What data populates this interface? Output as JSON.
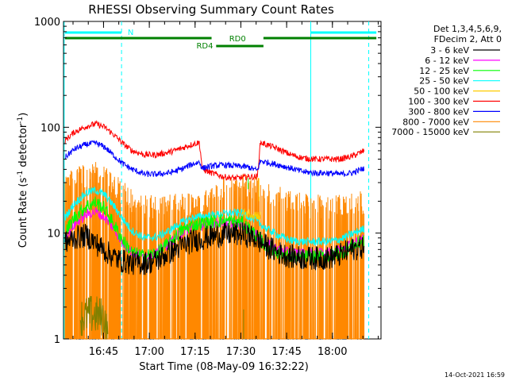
{
  "chart_data": {
    "type": "line",
    "title": "RHESSI Observing Summary Count Rates",
    "xlabel": "Start Time (08-May-09 16:32:22)",
    "ylabel_main": "Count Rate (s",
    "ylabel_sup1": "-1",
    "ylabel_mid": " detector",
    "ylabel_sup2": "-1",
    "ylabel_end": ")",
    "y_scale": "log",
    "ylim": [
      1,
      1000
    ],
    "xlim_minutes": [
      0,
      103
    ],
    "x_ticks": [
      {
        "label": "16:45",
        "min": 12.6
      },
      {
        "label": "17:00",
        "min": 27.6
      },
      {
        "label": "17:15",
        "min": 42.6
      },
      {
        "label": "17:30",
        "min": 57.6
      },
      {
        "label": "17:45",
        "min": 72.6
      },
      {
        "label": "18:00",
        "min": 87.6
      }
    ],
    "y_ticks": [
      {
        "label": "1",
        "value": 1
      },
      {
        "label": "10",
        "value": 10
      },
      {
        "label": "100",
        "value": 100
      },
      {
        "label": "1000",
        "value": 1000
      }
    ],
    "legend_header": [
      "Det 1,3,4,5,6,9,",
      "FDecim 2, Att 0"
    ],
    "series": [
      {
        "name": "3 - 6 keV",
        "color": "#000000",
        "points": [
          [
            0,
            8
          ],
          [
            3,
            9
          ],
          [
            7,
            9.5
          ],
          [
            10,
            8
          ],
          [
            14,
            6.5
          ],
          [
            18,
            5.5
          ],
          [
            22,
            5.2
          ],
          [
            26,
            5.2
          ],
          [
            30,
            5.5
          ],
          [
            34,
            6.5
          ],
          [
            38,
            7.5
          ],
          [
            42,
            8.5
          ],
          [
            46,
            9
          ],
          [
            50,
            9.5
          ],
          [
            54,
            9.8
          ],
          [
            58,
            9.8
          ],
          [
            62,
            9
          ],
          [
            66,
            7.5
          ],
          [
            70,
            6.5
          ],
          [
            74,
            6
          ],
          [
            78,
            5.8
          ],
          [
            82,
            5.8
          ],
          [
            86,
            5.8
          ],
          [
            90,
            6.2
          ],
          [
            94,
            7
          ],
          [
            98,
            7.5
          ]
        ],
        "noise": 0.12
      },
      {
        "name": "6 - 12 keV",
        "color": "#ff00ff",
        "points": [
          [
            0,
            9
          ],
          [
            3,
            12
          ],
          [
            7,
            15
          ],
          [
            10,
            16
          ],
          [
            13,
            14
          ],
          [
            16,
            11
          ],
          [
            19,
            8
          ],
          [
            22,
            6.5
          ],
          [
            26,
            6
          ],
          [
            30,
            6.5
          ],
          [
            34,
            8
          ],
          [
            38,
            10
          ],
          [
            42,
            11.5
          ],
          [
            46,
            12
          ],
          [
            50,
            12.5
          ],
          [
            54,
            12.5
          ],
          [
            58,
            12
          ],
          [
            62,
            10
          ],
          [
            66,
            8
          ],
          [
            70,
            7
          ],
          [
            74,
            6.5
          ],
          [
            78,
            6.5
          ],
          [
            82,
            6.5
          ],
          [
            86,
            6.5
          ],
          [
            90,
            7
          ],
          [
            94,
            8
          ],
          [
            98,
            9
          ]
        ],
        "noise": 0.05
      },
      {
        "name": "12 - 25 keV",
        "color": "#00ff00",
        "points": [
          [
            0,
            10
          ],
          [
            3,
            14
          ],
          [
            7,
            18
          ],
          [
            10,
            19.5
          ],
          [
            13,
            17
          ],
          [
            16,
            12
          ],
          [
            19,
            8.5
          ],
          [
            22,
            6.5
          ],
          [
            26,
            6
          ],
          [
            30,
            6.5
          ],
          [
            34,
            8
          ],
          [
            38,
            10.5
          ],
          [
            42,
            12
          ],
          [
            46,
            12.5
          ],
          [
            50,
            13
          ],
          [
            54,
            13
          ],
          [
            58,
            12.5
          ],
          [
            62,
            10
          ],
          [
            66,
            7.5
          ],
          [
            70,
            6.5
          ],
          [
            74,
            6
          ],
          [
            78,
            6
          ],
          [
            82,
            6
          ],
          [
            86,
            6
          ],
          [
            90,
            6.5
          ],
          [
            94,
            7.5
          ],
          [
            98,
            8.5
          ]
        ],
        "noise": 0.07
      },
      {
        "name": "25 - 50 keV",
        "color": "#00ffff",
        "points": [
          [
            0,
            14
          ],
          [
            3,
            19
          ],
          [
            7,
            24
          ],
          [
            10,
            25.5
          ],
          [
            13,
            23
          ],
          [
            16,
            18
          ],
          [
            19,
            13.5
          ],
          [
            22,
            10.5
          ],
          [
            26,
            9
          ],
          [
            30,
            9.2
          ],
          [
            34,
            10.5
          ],
          [
            38,
            12.5
          ],
          [
            42,
            14
          ],
          [
            46,
            14.5
          ],
          [
            50,
            15
          ],
          [
            54,
            15.5
          ],
          [
            58,
            15.5
          ],
          [
            62,
            13.5
          ],
          [
            66,
            11
          ],
          [
            70,
            9.5
          ],
          [
            74,
            8.5
          ],
          [
            78,
            8.3
          ],
          [
            82,
            8.3
          ],
          [
            86,
            8.3
          ],
          [
            90,
            8.7
          ],
          [
            94,
            9.8
          ],
          [
            98,
            11
          ]
        ],
        "noise": 0.04
      },
      {
        "name": "50 - 100 keV",
        "color": "#ffcc00",
        "points": [
          [
            58,
            15
          ],
          [
            60,
            15.5
          ],
          [
            62,
            15
          ],
          [
            64,
            14.5
          ]
        ],
        "noise": 0.05
      },
      {
        "name": "100 - 300 keV",
        "color": "#ff0000",
        "points": [
          [
            0,
            75
          ],
          [
            3,
            90
          ],
          [
            7,
            102
          ],
          [
            10,
            108
          ],
          [
            13,
            100
          ],
          [
            16,
            85
          ],
          [
            19,
            70
          ],
          [
            22,
            60
          ],
          [
            26,
            55
          ],
          [
            30,
            55
          ],
          [
            34,
            58
          ],
          [
            38,
            63
          ],
          [
            41,
            68
          ],
          [
            44,
            72
          ],
          [
            45,
            40
          ],
          [
            48,
            37
          ],
          [
            52,
            34
          ],
          [
            56,
            33
          ],
          [
            60,
            34
          ],
          [
            63,
            34
          ],
          [
            64,
            72
          ],
          [
            67,
            67
          ],
          [
            70,
            62
          ],
          [
            74,
            55
          ],
          [
            78,
            51
          ],
          [
            82,
            50
          ],
          [
            86,
            50
          ],
          [
            90,
            50
          ],
          [
            94,
            53
          ],
          [
            98,
            60
          ]
        ],
        "noise": 0.03
      },
      {
        "name": "300 - 800 keV",
        "color": "#0000ff",
        "points": [
          [
            0,
            52
          ],
          [
            3,
            62
          ],
          [
            7,
            69
          ],
          [
            10,
            71
          ],
          [
            13,
            65
          ],
          [
            16,
            54
          ],
          [
            19,
            45
          ],
          [
            22,
            40
          ],
          [
            26,
            36
          ],
          [
            30,
            36
          ],
          [
            34,
            37
          ],
          [
            38,
            40
          ],
          [
            41,
            44
          ],
          [
            44,
            47
          ],
          [
            45,
            41
          ],
          [
            48,
            43
          ],
          [
            52,
            44
          ],
          [
            56,
            43
          ],
          [
            60,
            42
          ],
          [
            63,
            39
          ],
          [
            64,
            48
          ],
          [
            67,
            46
          ],
          [
            70,
            44
          ],
          [
            74,
            41
          ],
          [
            78,
            38
          ],
          [
            82,
            37
          ],
          [
            86,
            37
          ],
          [
            90,
            36
          ],
          [
            94,
            37
          ],
          [
            98,
            41
          ]
        ],
        "noise": 0.03
      },
      {
        "name": "800 - 7000 keV",
        "color": "#ff8800",
        "points": [
          [
            0,
            32
          ],
          [
            3,
            38
          ],
          [
            7,
            42
          ],
          [
            10,
            43
          ],
          [
            13,
            40
          ],
          [
            16,
            34
          ],
          [
            19,
            28
          ],
          [
            22,
            24
          ],
          [
            26,
            21.5
          ],
          [
            30,
            21
          ],
          [
            34,
            21
          ],
          [
            38,
            22
          ],
          [
            42,
            22.5
          ],
          [
            45,
            24
          ],
          [
            48,
            29
          ],
          [
            52,
            32
          ],
          [
            56,
            33.5
          ],
          [
            60,
            33.5
          ],
          [
            63,
            32
          ],
          [
            66,
            29
          ],
          [
            70,
            26
          ],
          [
            74,
            23
          ],
          [
            78,
            21.5
          ],
          [
            82,
            21
          ],
          [
            86,
            21
          ],
          [
            90,
            21
          ],
          [
            94,
            21.5
          ],
          [
            98,
            23.5
          ]
        ],
        "noise": 0.025
      },
      {
        "name": "7000 - 15000 keV",
        "color": "#808000",
        "points": [
          [
            5,
            1.6
          ],
          [
            9,
            1.7
          ],
          [
            13,
            1.6
          ],
          [
            14,
            1
          ]
        ],
        "noise": 0.2
      }
    ],
    "annotations": [
      {
        "label": "N",
        "color": "#00ffff"
      },
      {
        "label": "RD0",
        "color": "#008000"
      },
      {
        "label": "RD4",
        "color": "#008000"
      }
    ],
    "footer_timestamp": "14-Oct-2021 16:59"
  }
}
